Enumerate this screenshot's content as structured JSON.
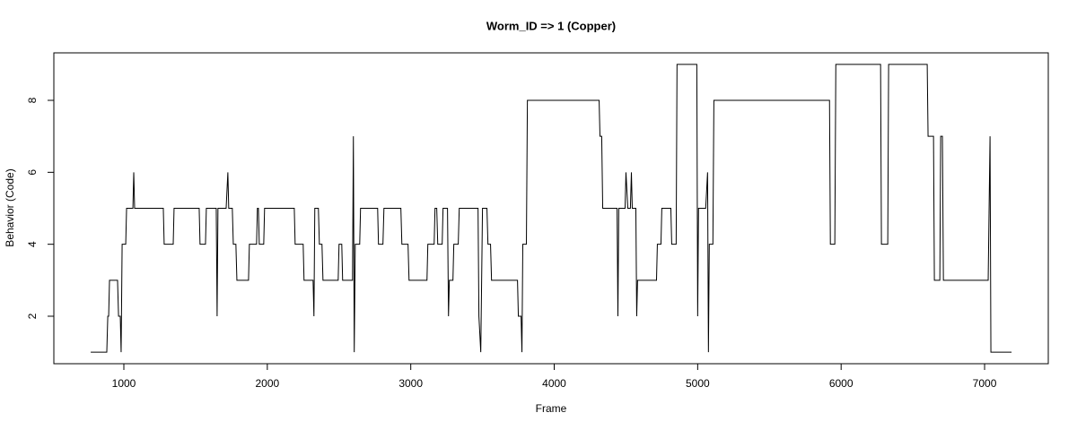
{
  "chart_data": {
    "type": "line",
    "title": "Worm_ID => 1 (Copper)",
    "xlabel": "Frame",
    "ylabel": "Behavior (Code)",
    "color": "#000000",
    "x": [
      769,
      881,
      888,
      894,
      900,
      956,
      963,
      975,
      981,
      988,
      1013,
      1019,
      1063,
      1069,
      1075,
      1275,
      1281,
      1344,
      1350,
      1525,
      1531,
      1569,
      1575,
      1644,
      1650,
      1656,
      1713,
      1725,
      1731,
      1756,
      1763,
      1781,
      1788,
      1869,
      1875,
      1925,
      1931,
      1938,
      1944,
      1975,
      1981,
      2188,
      2194,
      2250,
      2256,
      2319,
      2325,
      2331,
      2356,
      2363,
      2381,
      2388,
      2494,
      2500,
      2519,
      2525,
      2594,
      2600,
      2606,
      2613,
      2644,
      2650,
      2769,
      2775,
      2806,
      2813,
      2931,
      2938,
      2981,
      2988,
      3113,
      3119,
      3163,
      3169,
      3181,
      3188,
      3219,
      3225,
      3256,
      3263,
      3269,
      3294,
      3300,
      3331,
      3338,
      3469,
      3475,
      3488,
      3500,
      3531,
      3538,
      3556,
      3563,
      3744,
      3750,
      3769,
      3775,
      3781,
      3806,
      3813,
      4313,
      4319,
      4331,
      4338,
      4438,
      4444,
      4450,
      4494,
      4500,
      4513,
      4531,
      4538,
      4544,
      4569,
      4575,
      4581,
      4713,
      4719,
      4744,
      4750,
      4813,
      4819,
      4850,
      4856,
      4994,
      5000,
      5006,
      5056,
      5069,
      5075,
      5081,
      5106,
      5113,
      5919,
      5925,
      5956,
      5963,
      6275,
      6281,
      6325,
      6331,
      6600,
      6606,
      6644,
      6650,
      6688,
      6694,
      6706,
      6713,
      7025,
      7038,
      7044,
      7188
    ],
    "values": [
      1,
      1,
      2,
      2,
      3,
      3,
      2,
      2,
      1,
      4,
      4,
      5,
      5,
      6,
      5,
      5,
      4,
      4,
      5,
      5,
      4,
      4,
      5,
      5,
      2,
      5,
      5,
      6,
      5,
      5,
      4,
      4,
      3,
      3,
      4,
      4,
      5,
      5,
      4,
      4,
      5,
      5,
      4,
      4,
      3,
      3,
      2,
      5,
      5,
      4,
      4,
      3,
      3,
      4,
      4,
      3,
      3,
      7,
      1,
      4,
      4,
      5,
      5,
      4,
      4,
      5,
      5,
      4,
      4,
      3,
      3,
      4,
      4,
      5,
      5,
      4,
      4,
      5,
      5,
      2,
      3,
      3,
      4,
      4,
      5,
      5,
      2,
      1,
      5,
      5,
      4,
      4,
      3,
      3,
      2,
      2,
      1,
      4,
      4,
      8,
      8,
      7,
      7,
      5,
      5,
      2,
      5,
      5,
      6,
      5,
      5,
      6,
      5,
      5,
      2,
      3,
      3,
      4,
      4,
      5,
      5,
      4,
      4,
      9,
      9,
      2,
      5,
      5,
      6,
      1,
      4,
      4,
      8,
      8,
      4,
      4,
      9,
      9,
      4,
      4,
      9,
      9,
      7,
      7,
      3,
      3,
      7,
      7,
      3,
      3,
      7,
      1,
      1
    ],
    "xlim": [
      512,
      7444
    ],
    "ylim": [
      0.68,
      9.32
    ],
    "xticks": [
      1000,
      2000,
      3000,
      4000,
      5000,
      6000,
      7000
    ],
    "yticks": [
      2,
      4,
      6,
      8
    ]
  }
}
